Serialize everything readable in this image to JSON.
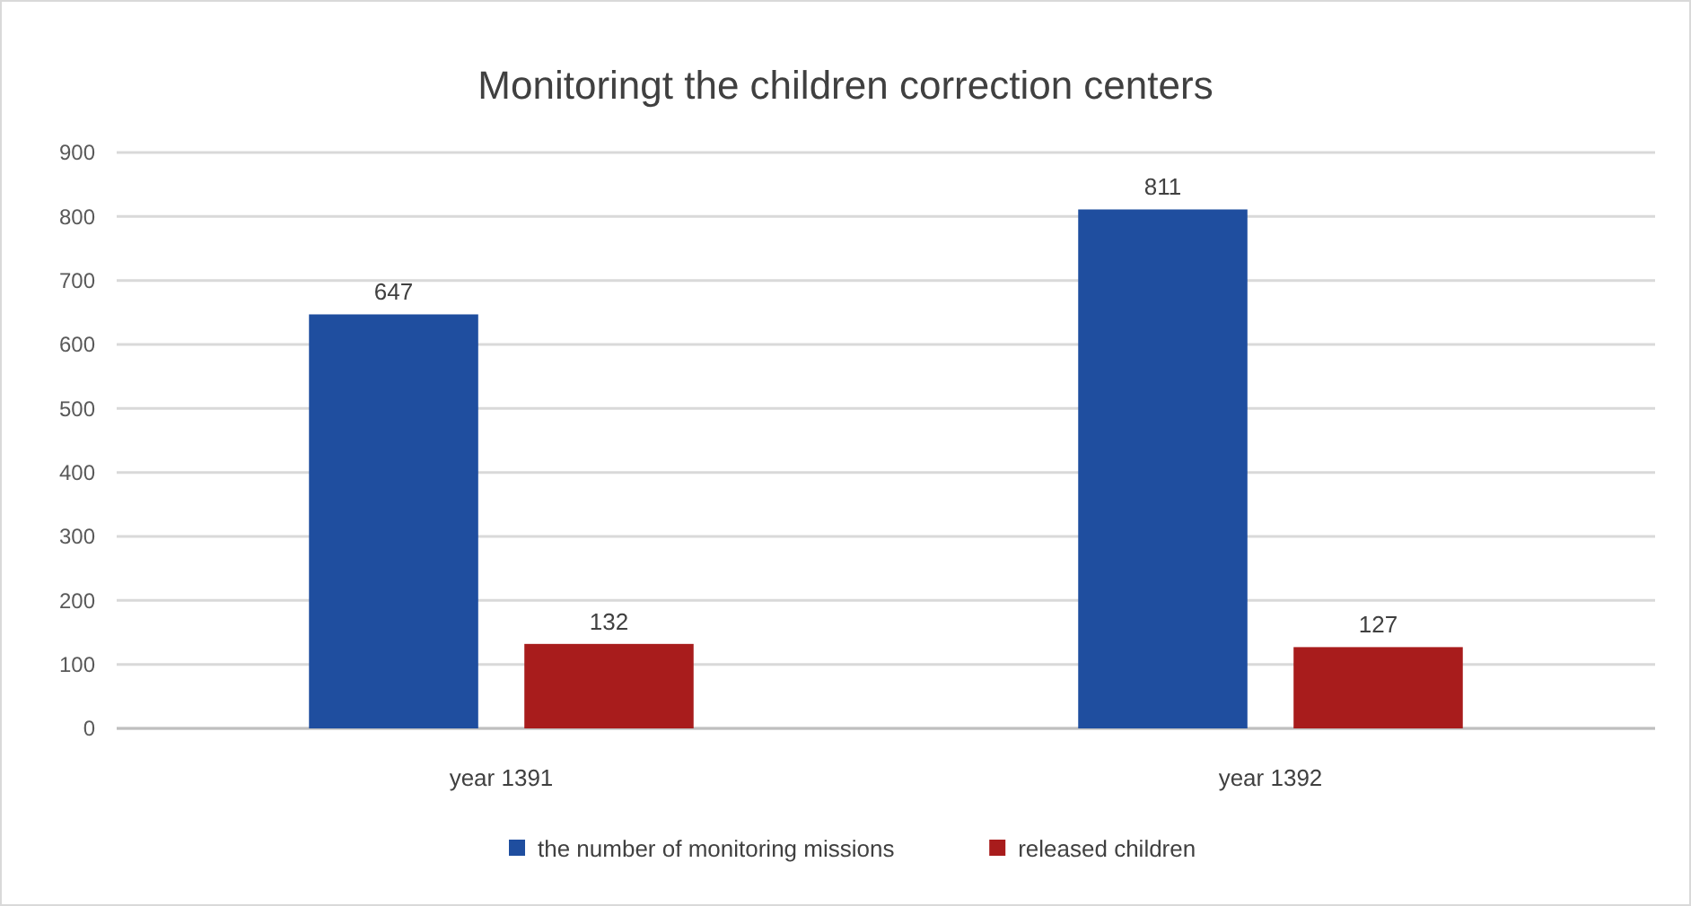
{
  "chart_data": {
    "type": "bar",
    "title": "Monitoringt the children correction centers",
    "categories": [
      "year 1391",
      "year 1392"
    ],
    "series": [
      {
        "name": "the number of monitoring missions",
        "color": "#1f4e9f",
        "values": [
          647,
          811
        ]
      },
      {
        "name": "released children",
        "color": "#a81c1c",
        "values": [
          132,
          127
        ]
      }
    ],
    "ylim": [
      0,
      900
    ],
    "yticks": [
      0,
      100,
      200,
      300,
      400,
      500,
      600,
      700,
      800,
      900
    ],
    "grid": "y",
    "legend": "bottom",
    "data_labels": true
  }
}
